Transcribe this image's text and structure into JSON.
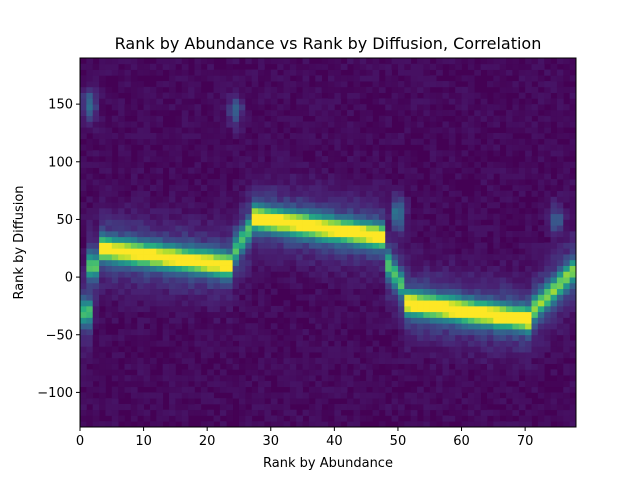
{
  "chart_data": {
    "type": "heatmap",
    "title": "Rank by Abundance vs Rank by Diffusion, Correlation",
    "xlabel": "Rank by Abundance",
    "ylabel": "Rank by Diffusion",
    "xlim": [
      0,
      78
    ],
    "ylim": [
      -130,
      190
    ],
    "x_ticks": [
      0,
      10,
      20,
      30,
      40,
      50,
      60,
      70
    ],
    "y_ticks": [
      -100,
      -50,
      0,
      50,
      100,
      150
    ],
    "x_bins": 78,
    "y_bins": 64,
    "colormap": "viridis",
    "grid": false,
    "ridge": [
      {
        "x_start": 0,
        "x_end": 1.5,
        "y_center": -30,
        "peak": 0.45
      },
      {
        "x_start": 1.5,
        "x_end": 3,
        "y_center": 10,
        "peak": 0.5
      },
      {
        "x_start": 3,
        "x_end": 24,
        "y_center_start": 25,
        "y_center_end": 10,
        "peak": 0.9
      },
      {
        "x_start": 24,
        "x_end": 27,
        "y_center_start": 20,
        "y_center_end": 45,
        "peak": 0.5
      },
      {
        "x_start": 27,
        "x_end": 48,
        "y_center_start": 52,
        "y_center_end": 35,
        "peak": 0.92
      },
      {
        "x_start": 48,
        "x_end": 51,
        "y_center_start": 15,
        "y_center_end": -10,
        "peak": 0.5
      },
      {
        "x_start": 51,
        "x_end": 71,
        "y_center_start": -22,
        "y_center_end": -37,
        "peak": 0.95
      },
      {
        "x_start": 71,
        "x_end": 78,
        "y_center_start": -30,
        "y_center_end": 8,
        "peak": 0.6
      }
    ],
    "bright_spots": [
      {
        "x": 12,
        "y": 20,
        "value": 1.0
      },
      {
        "x": 15,
        "y": 20,
        "value": 0.95
      },
      {
        "x": 21,
        "y": 14,
        "value": 0.9
      },
      {
        "x": 29,
        "y": 53,
        "value": 0.85
      },
      {
        "x": 37,
        "y": 40,
        "value": 1.0
      },
      {
        "x": 41,
        "y": 39,
        "value": 0.95
      },
      {
        "x": 57,
        "y": -23,
        "value": 1.0
      },
      {
        "x": 62,
        "y": -26,
        "value": 0.9
      },
      {
        "x": 68,
        "y": -37,
        "value": 1.0
      }
    ],
    "secondary_features": [
      {
        "x": 1.5,
        "y": 150,
        "value": 0.3
      },
      {
        "x": 24.5,
        "y": 145,
        "value": 0.25
      },
      {
        "x": 50,
        "y": 55,
        "value": 0.4
      },
      {
        "x": 75,
        "y": 50,
        "value": 0.25
      }
    ],
    "background_value": 0.0
  }
}
